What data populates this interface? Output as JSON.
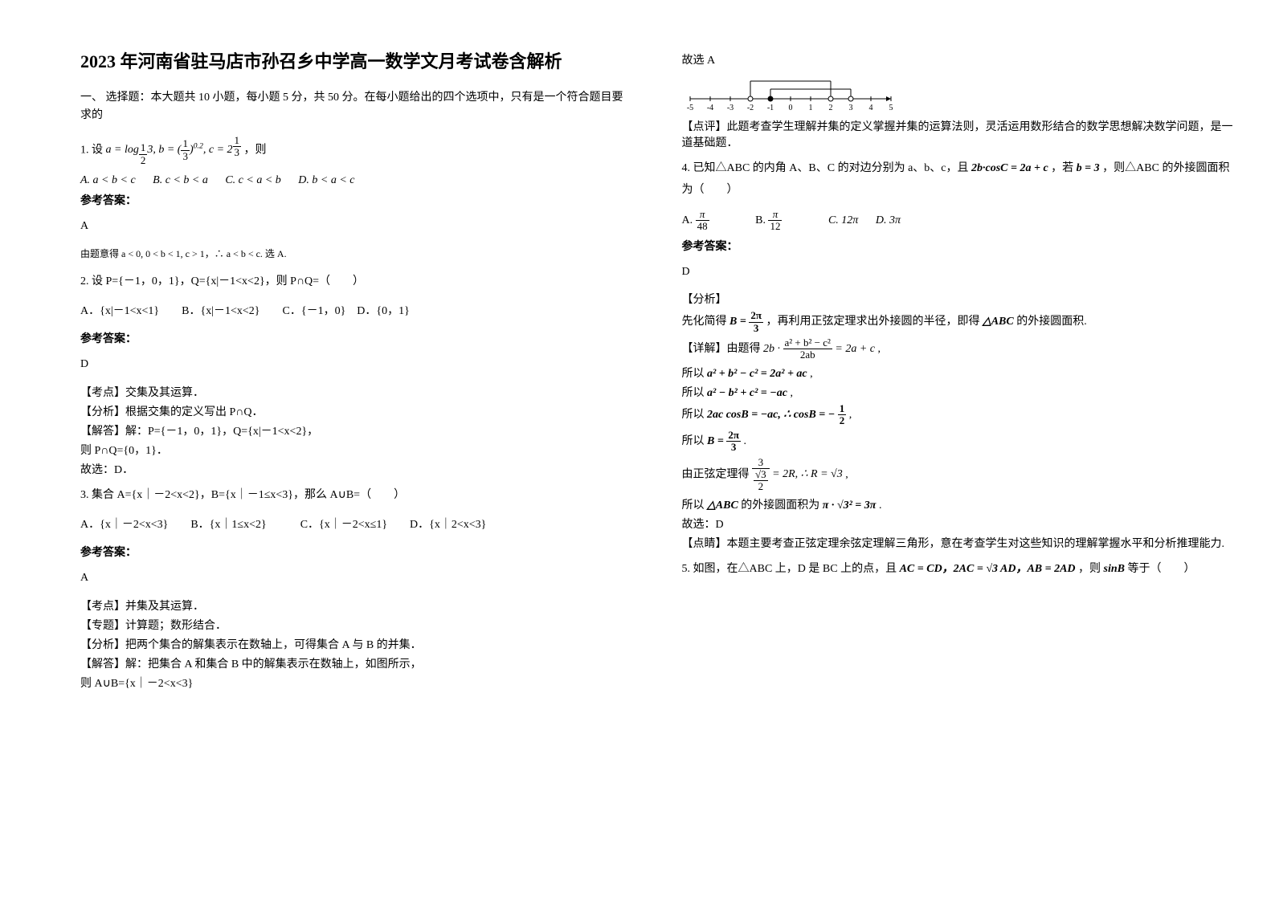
{
  "title": "2023 年河南省驻马店市孙召乡中学高一数学文月考试卷含解析",
  "section1_head": "一、 选择题：本大题共 10 小题，每小题 5 分，共 50 分。在每小题给出的四个选项中，只有是一个符合题目要求的",
  "q1_prefix": "1. 设",
  "q1_tail": "，则",
  "q1_opts": {
    "A": "A.  a < b < c",
    "B": "B.  c < b < a",
    "C": "C.  c < a < b",
    "D": "D.  b < a < c"
  },
  "ans_label": "参考答案：",
  "q1_ans": "A",
  "q1_expl": "由题意得 a < 0, 0 < b < 1, c > 1，∴ a < b < c.  选 A.",
  "q2_stem": "2. 设 P={－1，0，1}，Q={x|－1<x<2}，则 P∩Q=（　　）",
  "q2_opts": "A．{x|－1<x<1}　　B．{x|－1<x<2}　　C．{－1，0}　D．{0，1}",
  "q2_ans": "D",
  "q2_t1": "【考点】交集及其运算．",
  "q2_t2": "【分析】根据交集的定义写出 P∩Q．",
  "q2_t3": "【解答】解：P={－1，0，1}，Q={x|－1<x<2}，",
  "q2_t4": "则 P∩Q={0，1}．",
  "q2_t5": "故选：D．",
  "q3_stem": "3. 集合 A={x｜－2<x<2}，B={x｜－1≤x<3}，那么 A∪B=（　　）",
  "q3_opts": "A．{x｜－2<x<3}　　B．{x｜1≤x<2}　　　C．{x｜－2<x≤1}　　D．{x｜2<x<3}",
  "q3_ans": "A",
  "q3_t1": "【考点】并集及其运算．",
  "q3_t2": "【专题】计算题；数形结合．",
  "q3_t3": "【分析】把两个集合的解集表示在数轴上，可得集合 A 与 B 的并集．",
  "q3_t4": "【解答】解：把集合 A 和集合 B 中的解集表示在数轴上，如图所示，",
  "q3_t5": "则 A∪B={x｜－2<x<3}",
  "r_t1": "故选 A",
  "numline": {
    "ticks": [
      "-5",
      "-4",
      "-3",
      "-2",
      "-1",
      "0",
      "1",
      "2",
      "3",
      "4",
      "5"
    ],
    "segA": [
      -2,
      2
    ],
    "segB": [
      -1,
      3
    ],
    "axis_color": "#000000"
  },
  "r_t2": "【点评】此题考查学生理解并集的定义掌握并集的运算法则，灵活运用数形结合的数学思想解决数学问题，是一道基础题．",
  "q4_stem_a": "4. 已知△ABC 的内角 A、B、C 的对边分别为 a、b、c，且 ",
  "q4_stem_b": "2b·cosC = 2a + c",
  "q4_stem_c": "，若 ",
  "q4_stem_d": "b = 3",
  "q4_stem_e": "，则△ABC 的外接圆面积为（　　）",
  "q4_ans": "D",
  "q4_t1": "【分析】",
  "q4_t2a": "先化简得 ",
  "q4_t2b": "，再利用正弦定理求出外接圆的半径，即得 ",
  "q4_t2c": "△ABC",
  "q4_t2d": " 的外接圆面积.",
  "q4_t3": "【详解】由题得 ",
  "q4_t4a": "所以 ",
  "q4_t4b": "a² + b² − c² = 2a² + ac",
  "q4_t5a": "所以 ",
  "q4_t5b": "a² − b² + c² = −ac",
  "q4_t6": "所以 ",
  "q4_t7": "所以 ",
  "q4_t8": "由正弦定理得 ",
  "q4_t9a": "所以 ",
  "q4_t9b": "△ABC",
  "q4_t9c": " 的外接圆面积为 ",
  "q4_t10": "故选：D",
  "q4_t11": "【点睛】本题主要考查正弦定理余弦定理解三角形，意在考查学生对这些知识的理解掌握水平和分析推理能力.",
  "q5_a": "5. 如图，在△ABC 上，D 是 BC 上的点，且 ",
  "q5_b": "AC = CD，2AC = √3 AD，AB = 2AD",
  "q5_c": "，则 ",
  "q5_d": "sinB",
  "q5_e": " 等于（　　）",
  "colors": {
    "text": "#000000",
    "bg": "#ffffff"
  }
}
